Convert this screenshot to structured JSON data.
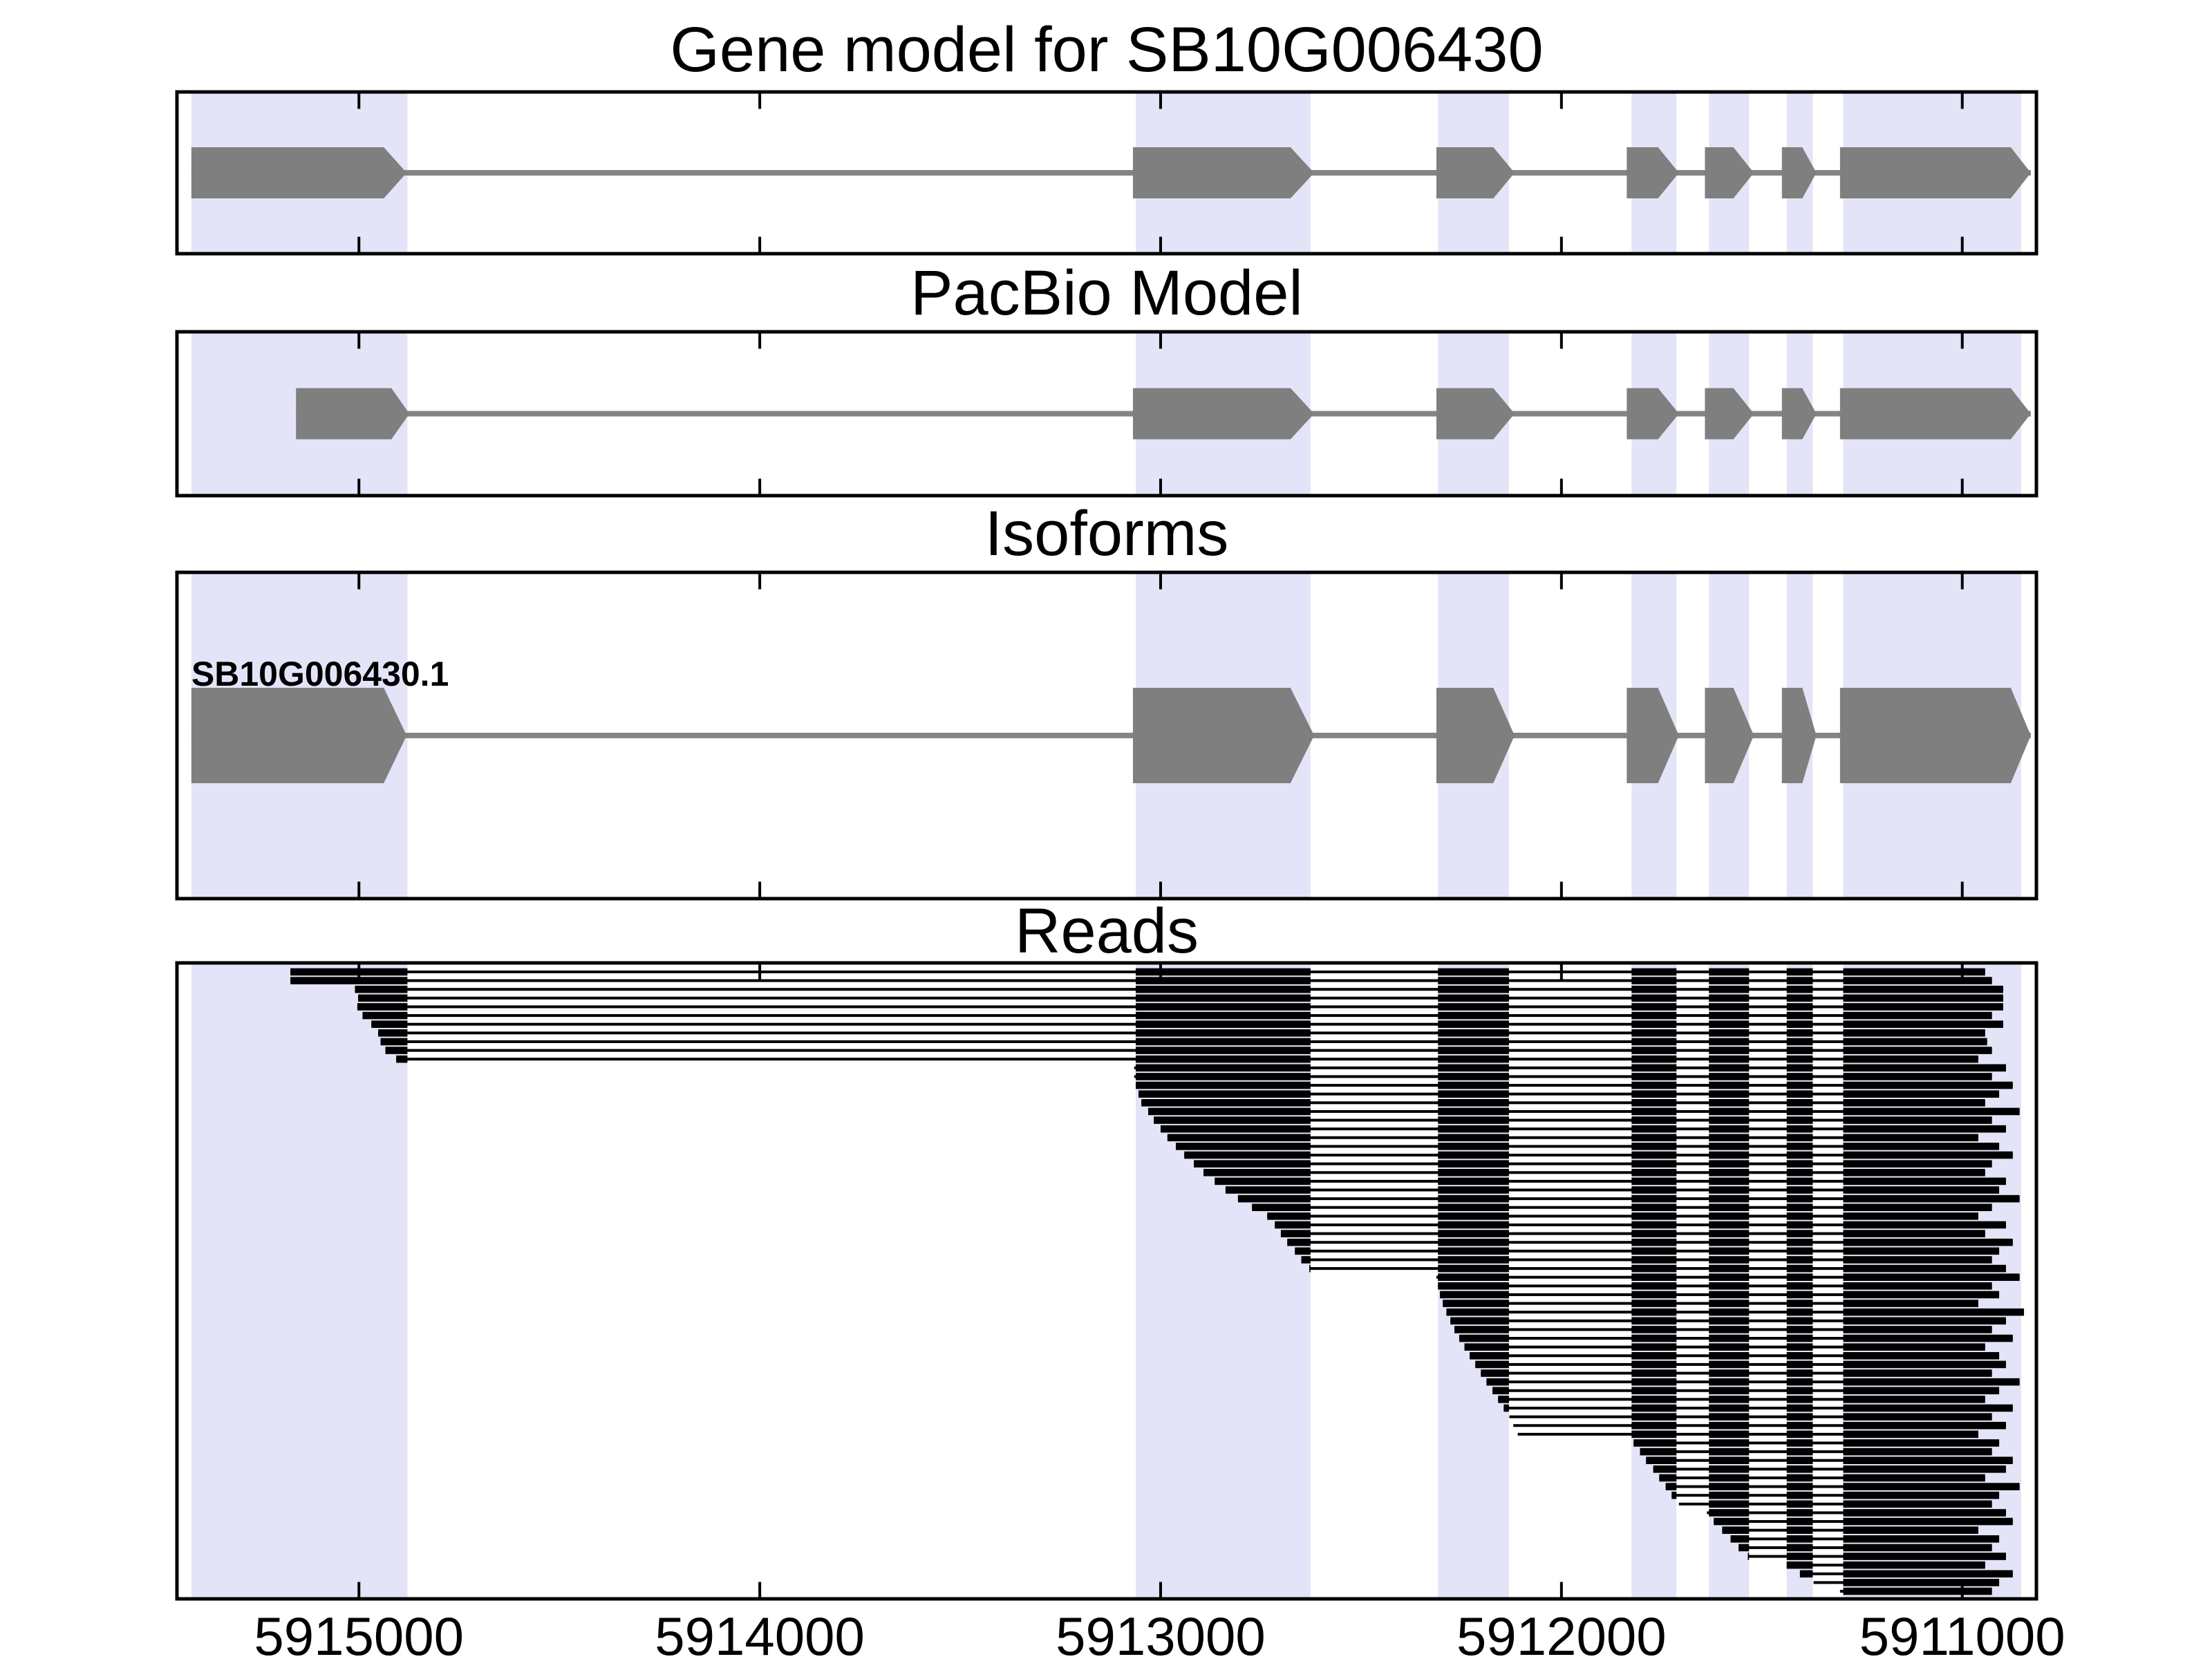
{
  "titles": {
    "main": "Gene model for SB10G006430",
    "pacbio": "PacBio Model",
    "isoforms": "Isoforms",
    "reads": "Reads"
  },
  "chart_data": {
    "type": "gene-model-tracks",
    "title": "Gene model for SB10G006430",
    "axis": {
      "xlim_left": 5915454,
      "xlim_right": 5910815,
      "reversed": true,
      "ticks": [
        {
          "value": 5915000,
          "label": "5915000"
        },
        {
          "value": 5914000,
          "label": "5914000"
        },
        {
          "value": 5913000,
          "label": "5913000"
        },
        {
          "value": 5912000,
          "label": "5912000"
        },
        {
          "value": 5911000,
          "label": "5911000"
        }
      ]
    },
    "colors": {
      "exon": "#7f7f7f",
      "intron_line": "#848484",
      "highlight_band": "#e4e4f8",
      "read": "#000000",
      "frame": "#000000",
      "text": "#000000"
    },
    "highlight_bands": [
      {
        "start": 5915418,
        "end": 5914879
      },
      {
        "start": 5913062,
        "end": 5912626
      },
      {
        "start": 5912308,
        "end": 5912131
      },
      {
        "start": 5911825,
        "end": 5911713
      },
      {
        "start": 5911632,
        "end": 5911532
      },
      {
        "start": 5911438,
        "end": 5911373
      },
      {
        "start": 5911297,
        "end": 5910853
      }
    ],
    "tracks": [
      {
        "name": "gene_model",
        "exons": [
          {
            "start": 5915418,
            "body_end": 5914938,
            "tip": 5914881
          },
          {
            "start": 5913069,
            "body_end": 5912676,
            "tip": 5912617
          },
          {
            "start": 5912312,
            "body_end": 5912170,
            "tip": 5912117
          },
          {
            "start": 5911837,
            "body_end": 5911759,
            "tip": 5911707
          },
          {
            "start": 5911642,
            "body_end": 5911571,
            "tip": 5911520
          },
          {
            "start": 5911450,
            "body_end": 5911399,
            "tip": 5911364
          },
          {
            "start": 5911305,
            "body_end": 5910879,
            "tip": 5910829
          }
        ]
      },
      {
        "name": "pacbio",
        "exons": [
          {
            "start": 5915157,
            "body_end": 5914919,
            "tip": 5914874
          },
          {
            "start": 5913069,
            "body_end": 5912676,
            "tip": 5912617
          },
          {
            "start": 5912312,
            "body_end": 5912170,
            "tip": 5912117
          },
          {
            "start": 5911837,
            "body_end": 5911759,
            "tip": 5911707
          },
          {
            "start": 5911642,
            "body_end": 5911571,
            "tip": 5911520
          },
          {
            "start": 5911450,
            "body_end": 5911399,
            "tip": 5911364
          },
          {
            "start": 5911305,
            "body_end": 5910879,
            "tip": 5910829
          }
        ]
      },
      {
        "name": "isoforms",
        "isoform_label": "SB10G006430.1",
        "exons": [
          {
            "start": 5915418,
            "body_end": 5914938,
            "tip": 5914881
          },
          {
            "start": 5913069,
            "body_end": 5912676,
            "tip": 5912617
          },
          {
            "start": 5912312,
            "body_end": 5912170,
            "tip": 5912117
          },
          {
            "start": 5911837,
            "body_end": 5911759,
            "tip": 5911707
          },
          {
            "start": 5911642,
            "body_end": 5911571,
            "tip": 5911520
          },
          {
            "start": 5911450,
            "body_end": 5911399,
            "tip": 5911364
          },
          {
            "start": 5911305,
            "body_end": 5910879,
            "tip": 5910829
          }
        ]
      },
      {
        "name": "reads",
        "read_blocks": [
          [
            5915418,
            5914879
          ],
          [
            5913062,
            5912626
          ],
          [
            5912308,
            5912131
          ],
          [
            5911825,
            5911713
          ],
          [
            5911632,
            5911532
          ],
          [
            5911438,
            5911373
          ],
          [
            5911297,
            null
          ]
        ],
        "reads": [
          [
            5915171,
            5910943
          ],
          [
            5915171,
            5910926
          ],
          [
            5915010,
            5910898
          ],
          [
            5915002,
            5910898
          ],
          [
            5915004,
            5910898
          ],
          [
            5914991,
            5910926
          ],
          [
            5914969,
            5910898
          ],
          [
            5914952,
            5910943
          ],
          [
            5914946,
            5910938
          ],
          [
            5914934,
            5910926
          ],
          [
            5914907,
            5910960
          ],
          [
            5913066,
            5910891
          ],
          [
            5913066,
            5910926
          ],
          [
            5913062,
            5910874
          ],
          [
            5913055,
            5910908
          ],
          [
            5913048,
            5910943
          ],
          [
            5913031,
            5910857
          ],
          [
            5913017,
            5910926
          ],
          [
            5913000,
            5910891
          ],
          [
            5912983,
            5910960
          ],
          [
            5912962,
            5910908
          ],
          [
            5912941,
            5910874
          ],
          [
            5912917,
            5910926
          ],
          [
            5912893,
            5910943
          ],
          [
            5912865,
            5910891
          ],
          [
            5912838,
            5910908
          ],
          [
            5912807,
            5910857
          ],
          [
            5912772,
            5910926
          ],
          [
            5912734,
            5910960
          ],
          [
            5912715,
            5910891
          ],
          [
            5912700,
            5910943
          ],
          [
            5912684,
            5910874
          ],
          [
            5912665,
            5910908
          ],
          [
            5912649,
            5910926
          ],
          [
            5912629,
            5910891
          ],
          [
            5912312,
            5910857
          ],
          [
            5912308,
            5910926
          ],
          [
            5912303,
            5910908
          ],
          [
            5912296,
            5910960
          ],
          [
            5912287,
            5910846
          ],
          [
            5912277,
            5910891
          ],
          [
            5912267,
            5910926
          ],
          [
            5912255,
            5910874
          ],
          [
            5912242,
            5910943
          ],
          [
            5912229,
            5910908
          ],
          [
            5912215,
            5910891
          ],
          [
            5912201,
            5910926
          ],
          [
            5912187,
            5910857
          ],
          [
            5912172,
            5910908
          ],
          [
            5912158,
            5910943
          ],
          [
            5912144,
            5910874
          ],
          [
            5912130,
            5910926
          ],
          [
            5912120,
            5910891
          ],
          [
            5912109,
            5910960
          ],
          [
            5911820,
            5910908
          ],
          [
            5911804,
            5910926
          ],
          [
            5911789,
            5910874
          ],
          [
            5911771,
            5910891
          ],
          [
            5911756,
            5910943
          ],
          [
            5911740,
            5910857
          ],
          [
            5911725,
            5910908
          ],
          [
            5911707,
            5910926
          ],
          [
            5911637,
            5910891
          ],
          [
            5911620,
            5910874
          ],
          [
            5911599,
            5910960
          ],
          [
            5911578,
            5910908
          ],
          [
            5911558,
            5910926
          ],
          [
            5911535,
            5910891
          ],
          [
            5911438,
            5910943
          ],
          [
            5911405,
            5910874
          ],
          [
            5911371,
            5910908
          ],
          [
            5911305,
            5910926
          ]
        ]
      }
    ]
  }
}
